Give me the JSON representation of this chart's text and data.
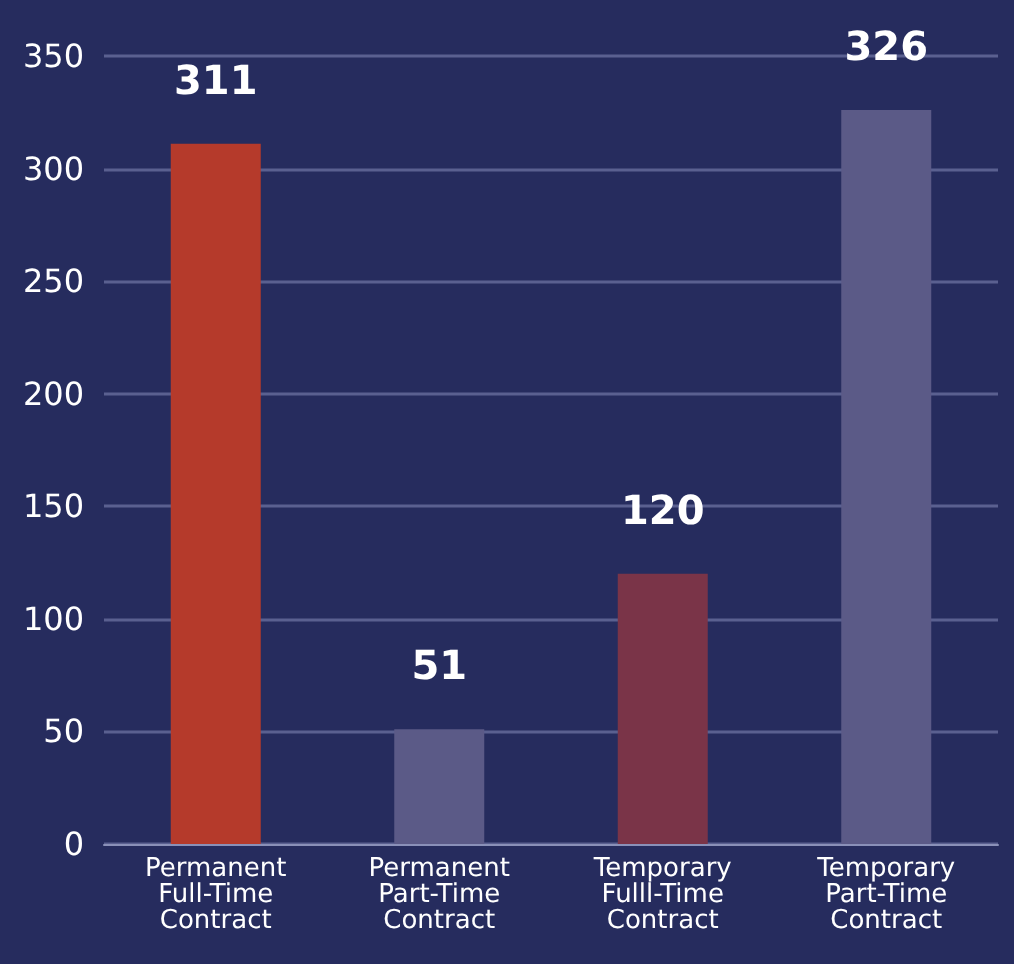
{
  "chart_data": {
    "type": "bar",
    "categories": [
      "Permanent\nFull-Time\nContract",
      "Permanent\nPart-Time\nContract",
      "Temporary\nFulll-Time\nContract",
      "Temporary\nPart-Time\nContract"
    ],
    "values": [
      311,
      51,
      120,
      326
    ],
    "colors": [
      "#b53a2b",
      "#5b5a87",
      "#7a3448",
      "#5b5a87"
    ],
    "ylim": [
      0,
      350
    ],
    "yticks": [
      0,
      50,
      100,
      150,
      200,
      250,
      300,
      350
    ],
    "grid": "y",
    "data_labels": true
  }
}
